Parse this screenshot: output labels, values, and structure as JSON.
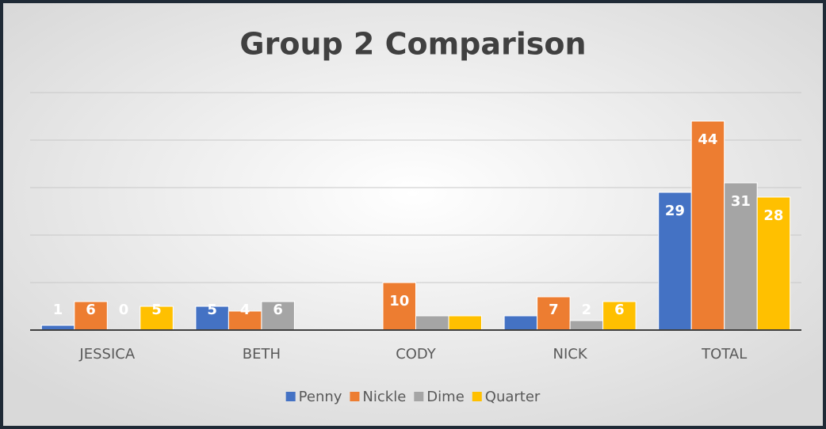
{
  "chart_data": {
    "type": "bar",
    "title": "Group 2 Comparison",
    "categories": [
      "JESSICA",
      "BETH",
      "CODY",
      "NICK",
      "TOTAL"
    ],
    "series": [
      {
        "name": "Penny",
        "color": "#4472c4",
        "values": [
          1,
          5,
          0,
          3,
          29
        ],
        "value_labels": [
          1,
          5,
          null,
          null,
          29
        ]
      },
      {
        "name": "Nickle",
        "color": "#ed7d31",
        "values": [
          6,
          4,
          10,
          7,
          44
        ],
        "value_labels": [
          6,
          4,
          10,
          7,
          44
        ]
      },
      {
        "name": "Dime",
        "color": "#a5a5a5",
        "values": [
          0,
          6,
          3,
          2,
          31
        ],
        "value_labels": [
          0,
          6,
          null,
          2,
          31
        ]
      },
      {
        "name": "Quarter",
        "color": "#ffc000",
        "values": [
          5,
          0,
          3,
          6,
          28
        ],
        "value_labels": [
          5,
          null,
          null,
          6,
          28
        ]
      }
    ],
    "ylim": [
      0,
      50
    ],
    "yticks": [
      0,
      10,
      20,
      30,
      40,
      50
    ],
    "grid": true,
    "legend": "bottom"
  }
}
